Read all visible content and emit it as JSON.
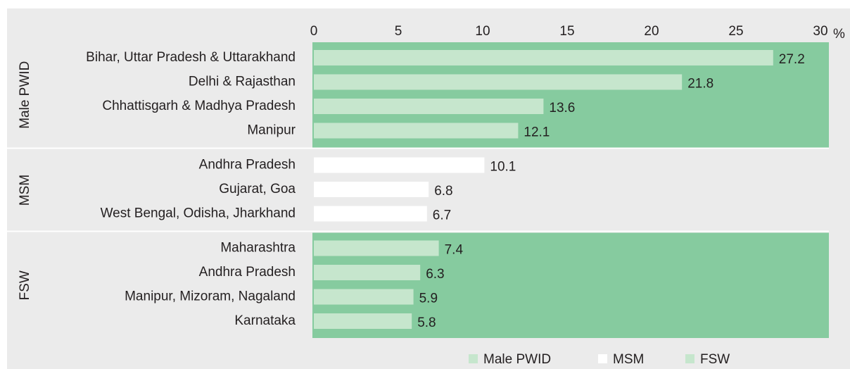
{
  "chart_data": {
    "type": "bar",
    "orientation": "horizontal",
    "unit": "%",
    "xlim": [
      0,
      30
    ],
    "xticks": [
      0,
      5,
      10,
      15,
      20,
      25,
      30
    ],
    "groups": [
      {
        "name": "Male PWID",
        "color": "#c6e6cd",
        "background": "#86cb9f",
        "categories": [
          "Bihar, Uttar Pradesh & Uttarakhand",
          "Delhi & Rajasthan",
          "Chhattisgarh & Madhya Pradesh",
          "Manipur"
        ],
        "values": [
          27.2,
          21.8,
          13.6,
          12.1
        ]
      },
      {
        "name": "MSM",
        "color": "#ffffff",
        "background": "#ebebeb",
        "categories": [
          "Andhra Pradesh",
          "Gujarat, Goa",
          "West Bengal, Odisha, Jharkhand"
        ],
        "values": [
          10.1,
          6.8,
          6.7
        ]
      },
      {
        "name": "FSW",
        "color": "#c6e6cd",
        "background": "#86cb9f",
        "categories": [
          "Maharashtra",
          "Andhra Pradesh",
          "Manipur, Mizoram, Nagaland",
          "Karnataka"
        ],
        "values": [
          7.4,
          6.3,
          5.9,
          5.8
        ]
      }
    ]
  }
}
